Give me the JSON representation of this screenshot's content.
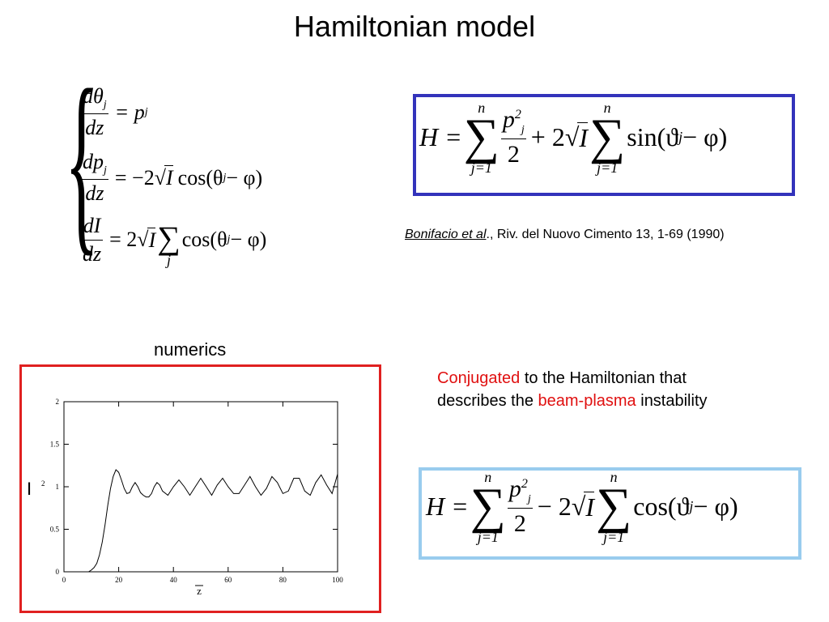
{
  "slide": {
    "title": "Hamiltonian model"
  },
  "equations": {
    "system": [
      {
        "lhs_num": "dθ",
        "lhs_num_sub": "j",
        "lhs_den": "dz",
        "rhs": "= p",
        "rhs_sub": "j"
      },
      {
        "lhs_num": "dp",
        "lhs_num_sub": "j",
        "lhs_den": "dz",
        "rhs_pre": "= −2",
        "rhs_sqrt": "I",
        "rhs_fn": "cos(θ",
        "rhs_sub": "j",
        "rhs_post": " − φ)"
      },
      {
        "lhs_num": "dI",
        "lhs_den": "dz",
        "rhs_pre": "= 2",
        "rhs_sqrt": "I",
        "rhs_sum_sub": "j",
        "rhs_fn": "cos(θ",
        "rhs_sub": "j",
        "rhs_post": " − φ)"
      }
    ],
    "hamiltonian_top": {
      "H": "H =",
      "sum_top": "n",
      "sum_bottom": "j=1",
      "p": "p",
      "p_sup": "2",
      "p_sub": "j",
      "den": "2",
      "mid": "+ 2",
      "sqrt": "I",
      "fn": "sin(ϑ",
      "fn_sub": "j",
      "post": " − φ)"
    },
    "hamiltonian_bottom": {
      "H": "H =",
      "sum_top": "n",
      "sum_bottom": "j=1",
      "p": "p",
      "p_sup": "2",
      "p_sub": "j",
      "den": "2",
      "mid": "− 2",
      "sqrt": "I",
      "fn": "cos(ϑ",
      "fn_sub": "j",
      "post": " − φ)"
    }
  },
  "reference": {
    "authors": "Bonifacio et al",
    "rest": "., Riv. del Nuovo Cimento 13, 1-69 (1990)"
  },
  "numerics_label": "numerics",
  "description": {
    "part1_red": "Conjugated",
    "part1": " to the Hamiltonian that",
    "part2": "describes the ",
    "part2_red": "beam-plasma",
    "part3": " instability"
  },
  "colors": {
    "blue_box": "#3333bb",
    "lightblue_box": "#99ccee",
    "red_box": "#e02020",
    "accent_red": "#e01010"
  },
  "chart_data": {
    "type": "line",
    "xlabel": "z",
    "ylabel": "I",
    "ylabel_mark": "2",
    "xlim": [
      0,
      100
    ],
    "ylim": [
      0,
      2
    ],
    "xticks": [
      0,
      20,
      40,
      60,
      80,
      100
    ],
    "yticks": [
      0,
      0.5,
      1,
      1.5,
      2
    ],
    "grid": false,
    "series": [
      {
        "x": [
          9,
          10,
          11,
          12,
          13,
          14,
          15,
          16,
          17,
          18,
          19,
          20,
          21,
          22,
          23,
          24,
          25,
          26,
          27,
          28,
          29,
          30,
          31,
          32,
          33,
          34,
          35,
          36,
          38,
          40,
          42,
          44,
          46,
          48,
          50,
          52,
          54,
          56,
          58,
          60,
          62,
          64,
          66,
          68,
          70,
          72,
          74,
          76,
          78,
          80,
          82,
          84,
          86,
          88,
          90,
          92,
          94,
          96,
          98,
          100
        ],
        "y": [
          0,
          0.02,
          0.05,
          0.1,
          0.2,
          0.35,
          0.55,
          0.78,
          0.98,
          1.12,
          1.2,
          1.17,
          1.08,
          0.98,
          0.92,
          0.93,
          1.0,
          1.05,
          1.0,
          0.93,
          0.9,
          0.88,
          0.88,
          0.92,
          1.0,
          1.05,
          1.02,
          0.95,
          0.9,
          1.0,
          1.08,
          1.0,
          0.9,
          1.0,
          1.1,
          1.0,
          0.9,
          1.02,
          1.1,
          1.0,
          0.92,
          0.92,
          1.02,
          1.12,
          1.0,
          0.9,
          0.98,
          1.12,
          1.05,
          0.92,
          0.95,
          1.1,
          1.1,
          0.95,
          0.9,
          1.05,
          1.14,
          1.02,
          0.92,
          1.15
        ]
      }
    ]
  }
}
